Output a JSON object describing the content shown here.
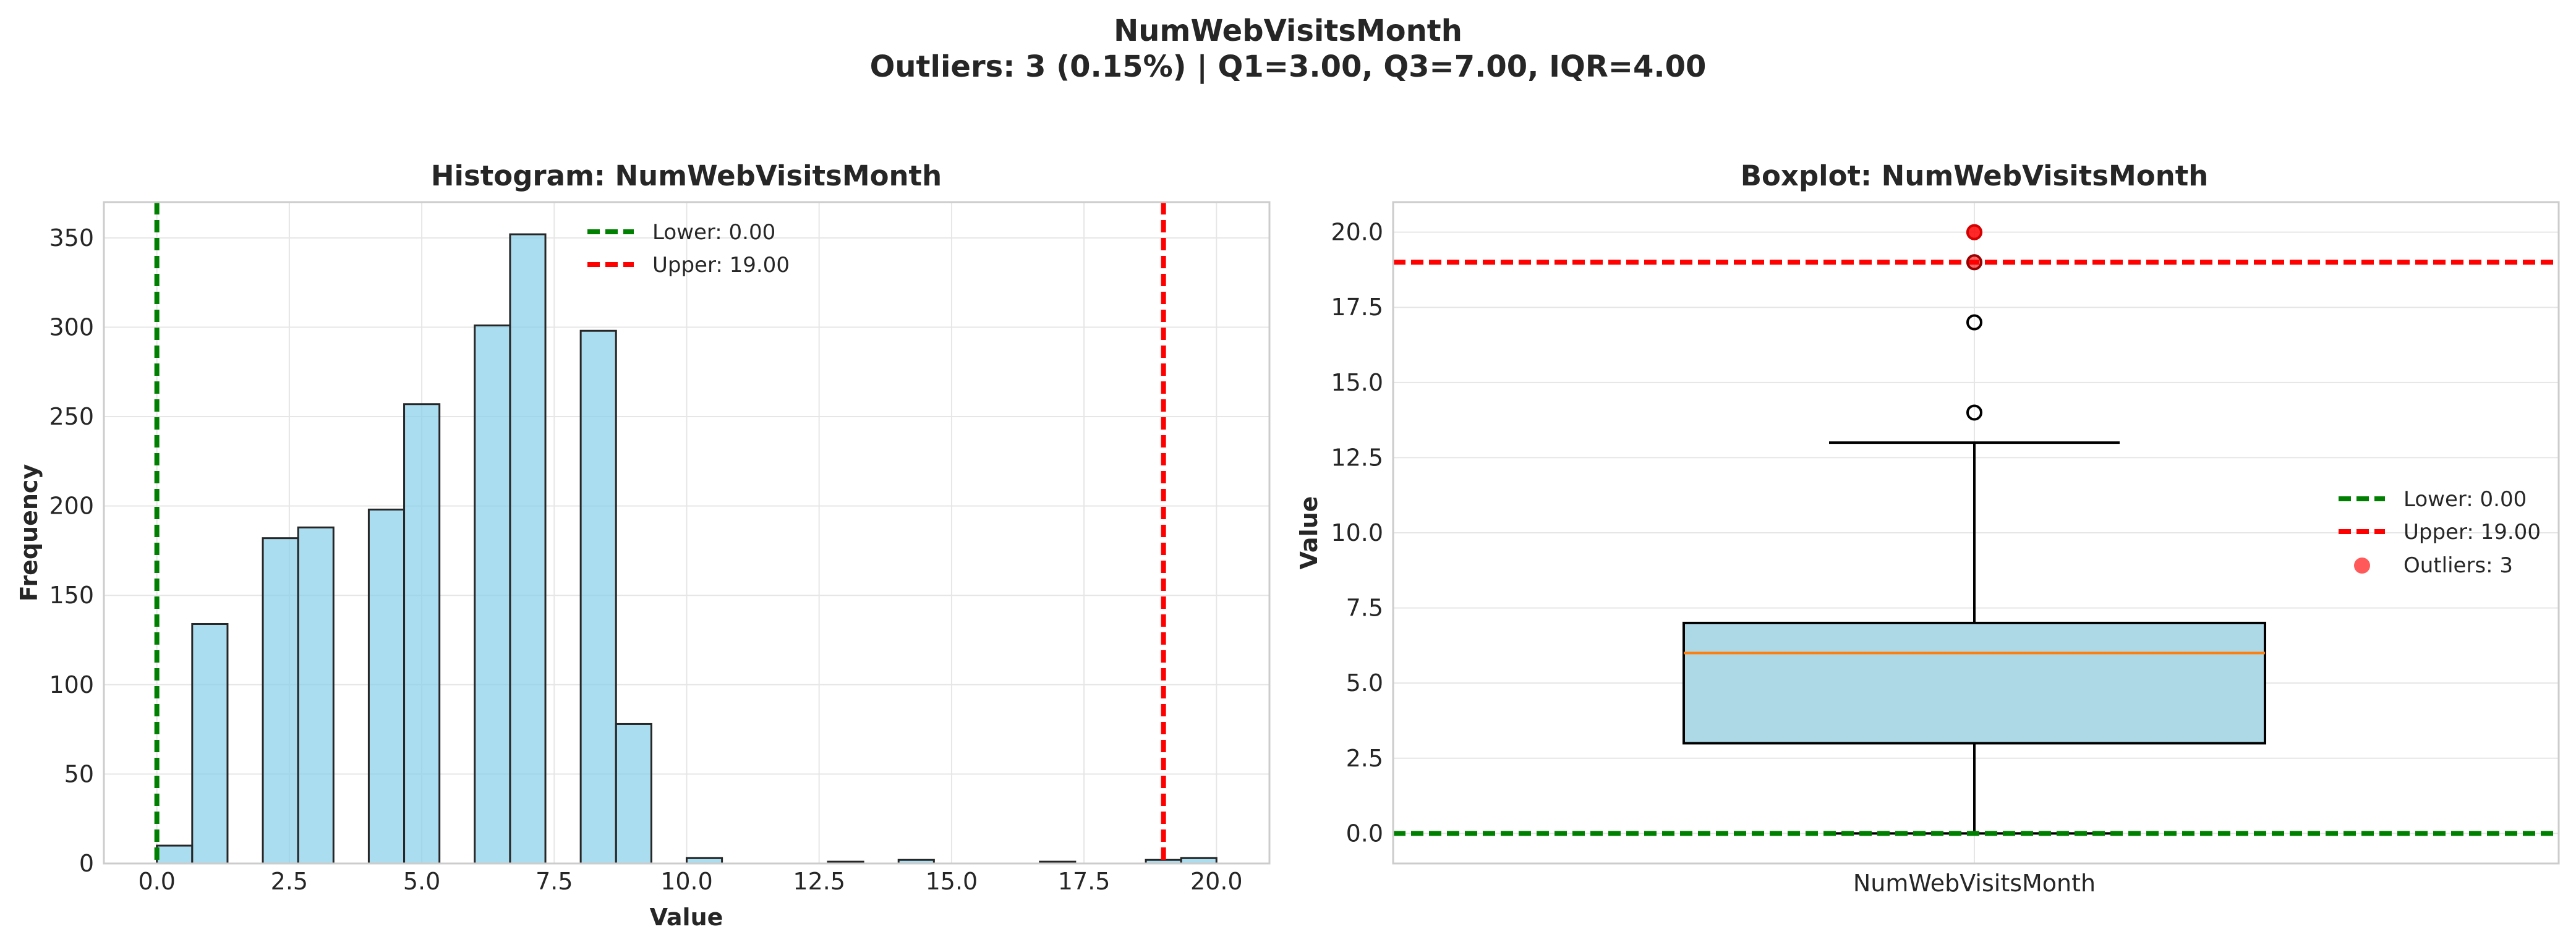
{
  "figure": {
    "title_line1": "NumWebVisitsMonth",
    "title_line2": "Outliers: 3 (0.15%) | Q1=3.00, Q3=7.00, IQR=4.00"
  },
  "chart_data": [
    {
      "type": "bar",
      "subtype": "histogram",
      "title": "Histogram: NumWebVisitsMonth",
      "xlabel": "Value",
      "ylabel": "Frequency",
      "xlim": [
        -1.0,
        21.0
      ],
      "ylim": [
        0,
        370
      ],
      "xticks": [
        0.0,
        2.5,
        5.0,
        7.5,
        10.0,
        12.5,
        15.0,
        17.5,
        20.0
      ],
      "xtick_labels": [
        "0.0",
        "2.5",
        "5.0",
        "7.5",
        "10.0",
        "12.5",
        "15.0",
        "17.5",
        "20.0"
      ],
      "yticks": [
        0,
        50,
        100,
        150,
        200,
        250,
        300,
        350
      ],
      "ytick_labels": [
        "0",
        "50",
        "100",
        "150",
        "200",
        "250",
        "300",
        "350"
      ],
      "grid": true,
      "bin_width": 0.6667,
      "bins_start": 0,
      "bars": [
        {
          "x": 0.0,
          "count": 10
        },
        {
          "x": 0.667,
          "count": 134
        },
        {
          "x": 2.0,
          "count": 182
        },
        {
          "x": 2.667,
          "count": 188
        },
        {
          "x": 4.0,
          "count": 198
        },
        {
          "x": 4.667,
          "count": 257
        },
        {
          "x": 6.0,
          "count": 301
        },
        {
          "x": 6.667,
          "count": 352
        },
        {
          "x": 8.0,
          "count": 298
        },
        {
          "x": 8.667,
          "count": 78
        },
        {
          "x": 10.0,
          "count": 3
        },
        {
          "x": 12.667,
          "count": 1
        },
        {
          "x": 14.0,
          "count": 2
        },
        {
          "x": 16.667,
          "count": 1
        },
        {
          "x": 18.667,
          "count": 2
        },
        {
          "x": 19.333,
          "count": 3
        }
      ],
      "bar_color": "#87ceeb",
      "bar_edge_color": "#262626",
      "lines": [
        {
          "label": "Lower: 0.00",
          "value": 0.0,
          "color": "#008000"
        },
        {
          "label": "Upper: 19.00",
          "value": 19.0,
          "color": "#ff0000"
        }
      ],
      "legend_position": "upper-center"
    },
    {
      "type": "boxplot",
      "title": "Boxplot: NumWebVisitsMonth",
      "xlabel": "",
      "ylabel": "Value",
      "category": "NumWebVisitsMonth",
      "ylim": [
        -1.0,
        21.0
      ],
      "yticks": [
        0.0,
        2.5,
        5.0,
        7.5,
        10.0,
        12.5,
        15.0,
        17.5,
        20.0
      ],
      "ytick_labels": [
        "0.0",
        "2.5",
        "5.0",
        "7.5",
        "10.0",
        "12.5",
        "15.0",
        "17.5",
        "20.0"
      ],
      "grid": true,
      "whisker_low": 0,
      "q1": 3.0,
      "median": 6.0,
      "q3": 7.0,
      "whisker_high": 13,
      "flier_points": [
        14,
        17,
        19,
        20
      ],
      "highlighted_outliers": [
        19,
        20,
        20
      ],
      "box_color": "#add8e6",
      "median_color": "#ff7f0e",
      "outlier_color": "#ff0000",
      "lines": [
        {
          "label": "Lower: 0.00",
          "value": 0.0,
          "color": "#008000"
        },
        {
          "label": "Upper: 19.00",
          "value": 19.0,
          "color": "#ff0000"
        }
      ],
      "outlier_legend_label": "Outliers: 3",
      "legend_position": "center-right"
    }
  ]
}
